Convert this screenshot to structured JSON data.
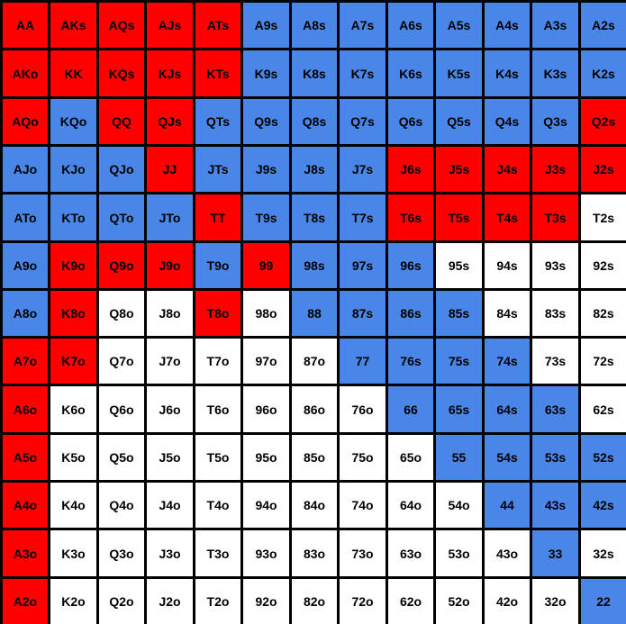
{
  "colors": {
    "red": "#FF0000",
    "blue": "#4A86E8",
    "white": "#FFFFFF",
    "border": "#000000"
  },
  "rows": [
    [
      [
        "AA",
        "red"
      ],
      [
        "AKs",
        "red"
      ],
      [
        "AQs",
        "red"
      ],
      [
        "AJs",
        "red"
      ],
      [
        "ATs",
        "red"
      ],
      [
        "A9s",
        "blue"
      ],
      [
        "A8s",
        "blue"
      ],
      [
        "A7s",
        "blue"
      ],
      [
        "A6s",
        "blue"
      ],
      [
        "A5s",
        "blue"
      ],
      [
        "A4s",
        "blue"
      ],
      [
        "A3s",
        "blue"
      ],
      [
        "A2s",
        "blue"
      ]
    ],
    [
      [
        "AKo",
        "red"
      ],
      [
        "KK",
        "red"
      ],
      [
        "KQs",
        "red"
      ],
      [
        "KJs",
        "red"
      ],
      [
        "KTs",
        "red"
      ],
      [
        "K9s",
        "blue"
      ],
      [
        "K8s",
        "blue"
      ],
      [
        "K7s",
        "blue"
      ],
      [
        "K6s",
        "blue"
      ],
      [
        "K5s",
        "blue"
      ],
      [
        "K4s",
        "blue"
      ],
      [
        "K3s",
        "blue"
      ],
      [
        "K2s",
        "blue"
      ]
    ],
    [
      [
        "AQo",
        "red"
      ],
      [
        "KQo",
        "blue"
      ],
      [
        "QQ",
        "red"
      ],
      [
        "QJs",
        "red"
      ],
      [
        "QTs",
        "blue"
      ],
      [
        "Q9s",
        "blue"
      ],
      [
        "Q8s",
        "blue"
      ],
      [
        "Q7s",
        "blue"
      ],
      [
        "Q6s",
        "blue"
      ],
      [
        "Q5s",
        "blue"
      ],
      [
        "Q4s",
        "blue"
      ],
      [
        "Q3s",
        "blue"
      ],
      [
        "Q2s",
        "red"
      ]
    ],
    [
      [
        "AJo",
        "blue"
      ],
      [
        "KJo",
        "blue"
      ],
      [
        "QJo",
        "blue"
      ],
      [
        "JJ",
        "red"
      ],
      [
        "JTs",
        "blue"
      ],
      [
        "J9s",
        "blue"
      ],
      [
        "J8s",
        "blue"
      ],
      [
        "J7s",
        "blue"
      ],
      [
        "J6s",
        "red"
      ],
      [
        "J5s",
        "red"
      ],
      [
        "J4s",
        "red"
      ],
      [
        "J3s",
        "red"
      ],
      [
        "J2s",
        "red"
      ]
    ],
    [
      [
        "ATo",
        "blue"
      ],
      [
        "KTo",
        "blue"
      ],
      [
        "QTo",
        "blue"
      ],
      [
        "JTo",
        "blue"
      ],
      [
        "TT",
        "red"
      ],
      [
        "T9s",
        "blue"
      ],
      [
        "T8s",
        "blue"
      ],
      [
        "T7s",
        "blue"
      ],
      [
        "T6s",
        "red"
      ],
      [
        "T5s",
        "red"
      ],
      [
        "T4s",
        "red"
      ],
      [
        "T3s",
        "red"
      ],
      [
        "T2s",
        "white"
      ]
    ],
    [
      [
        "A9o",
        "blue"
      ],
      [
        "K9o",
        "red"
      ],
      [
        "Q9o",
        "red"
      ],
      [
        "J9o",
        "red"
      ],
      [
        "T9o",
        "blue"
      ],
      [
        "99",
        "red"
      ],
      [
        "98s",
        "blue"
      ],
      [
        "97s",
        "blue"
      ],
      [
        "96s",
        "blue"
      ],
      [
        "95s",
        "white"
      ],
      [
        "94s",
        "white"
      ],
      [
        "93s",
        "white"
      ],
      [
        "92s",
        "white"
      ]
    ],
    [
      [
        "A8o",
        "blue"
      ],
      [
        "K8o",
        "red"
      ],
      [
        "Q8o",
        "white"
      ],
      [
        "J8o",
        "white"
      ],
      [
        "T8o",
        "red"
      ],
      [
        "98o",
        "white"
      ],
      [
        "88",
        "blue"
      ],
      [
        "87s",
        "blue"
      ],
      [
        "86s",
        "blue"
      ],
      [
        "85s",
        "blue"
      ],
      [
        "84s",
        "white"
      ],
      [
        "83s",
        "white"
      ],
      [
        "82s",
        "white"
      ]
    ],
    [
      [
        "A7o",
        "red"
      ],
      [
        "K7o",
        "red"
      ],
      [
        "Q7o",
        "white"
      ],
      [
        "J7o",
        "white"
      ],
      [
        "T7o",
        "white"
      ],
      [
        "97o",
        "white"
      ],
      [
        "87o",
        "white"
      ],
      [
        "77",
        "blue"
      ],
      [
        "76s",
        "blue"
      ],
      [
        "75s",
        "blue"
      ],
      [
        "74s",
        "blue"
      ],
      [
        "73s",
        "white"
      ],
      [
        "72s",
        "white"
      ]
    ],
    [
      [
        "A6o",
        "red"
      ],
      [
        "K6o",
        "white"
      ],
      [
        "Q6o",
        "white"
      ],
      [
        "J6o",
        "white"
      ],
      [
        "T6o",
        "white"
      ],
      [
        "96o",
        "white"
      ],
      [
        "86o",
        "white"
      ],
      [
        "76o",
        "white"
      ],
      [
        "66",
        "blue"
      ],
      [
        "65s",
        "blue"
      ],
      [
        "64s",
        "blue"
      ],
      [
        "63s",
        "blue"
      ],
      [
        "62s",
        "white"
      ]
    ],
    [
      [
        "A5o",
        "red"
      ],
      [
        "K5o",
        "white"
      ],
      [
        "Q5o",
        "white"
      ],
      [
        "J5o",
        "white"
      ],
      [
        "T5o",
        "white"
      ],
      [
        "95o",
        "white"
      ],
      [
        "85o",
        "white"
      ],
      [
        "75o",
        "white"
      ],
      [
        "65o",
        "white"
      ],
      [
        "55",
        "blue"
      ],
      [
        "54s",
        "blue"
      ],
      [
        "53s",
        "blue"
      ],
      [
        "52s",
        "blue"
      ]
    ],
    [
      [
        "A4o",
        "red"
      ],
      [
        "K4o",
        "white"
      ],
      [
        "Q4o",
        "white"
      ],
      [
        "J4o",
        "white"
      ],
      [
        "T4o",
        "white"
      ],
      [
        "94o",
        "white"
      ],
      [
        "84o",
        "white"
      ],
      [
        "74o",
        "white"
      ],
      [
        "64o",
        "white"
      ],
      [
        "54o",
        "white"
      ],
      [
        "44",
        "blue"
      ],
      [
        "43s",
        "blue"
      ],
      [
        "42s",
        "blue"
      ]
    ],
    [
      [
        "A3o",
        "red"
      ],
      [
        "K3o",
        "white"
      ],
      [
        "Q3o",
        "white"
      ],
      [
        "J3o",
        "white"
      ],
      [
        "T3o",
        "white"
      ],
      [
        "93o",
        "white"
      ],
      [
        "83o",
        "white"
      ],
      [
        "73o",
        "white"
      ],
      [
        "63o",
        "white"
      ],
      [
        "53o",
        "white"
      ],
      [
        "43o",
        "white"
      ],
      [
        "33",
        "blue"
      ],
      [
        "32s",
        "white"
      ]
    ],
    [
      [
        "A2o",
        "red"
      ],
      [
        "K2o",
        "white"
      ],
      [
        "Q2o",
        "white"
      ],
      [
        "J2o",
        "white"
      ],
      [
        "T2o",
        "white"
      ],
      [
        "92o",
        "white"
      ],
      [
        "82o",
        "white"
      ],
      [
        "72o",
        "white"
      ],
      [
        "62o",
        "white"
      ],
      [
        "52o",
        "white"
      ],
      [
        "42o",
        "white"
      ],
      [
        "32o",
        "white"
      ],
      [
        "22",
        "blue"
      ]
    ]
  ]
}
